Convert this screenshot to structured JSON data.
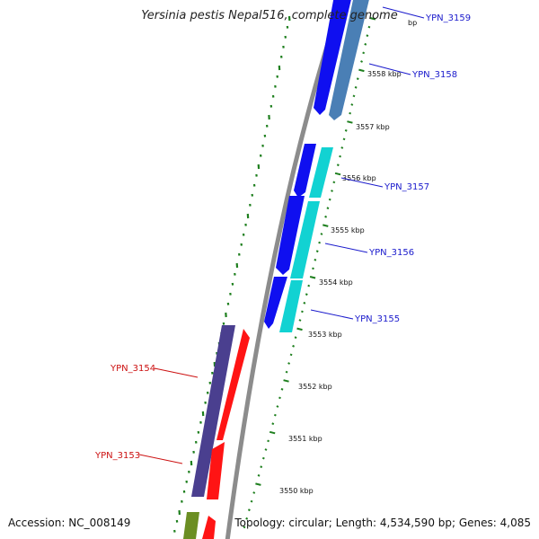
{
  "title": "Yersinia pestis Nepal516, complete genome",
  "footer": {
    "accession": "Accession: NC_008149",
    "topology": "Topology: circular; Length: 4,534,590 bp; Genes: 4,085"
  },
  "colors": {
    "backbone": "#8c8c8c",
    "tick": "#1e7f1e",
    "label_forward": "#1a1acc",
    "label_reverse": "#cc1111",
    "gene_blue": "#0f0ff0",
    "gene_steel": "#4a7fb5",
    "gene_cyan": "#12d2d2",
    "gene_navy": "#4a3f8f",
    "gene_red": "#ff1414",
    "gene_olive": "#6b8e23"
  },
  "scale_labels": [
    "3557 kbp",
    "3556 kbp",
    "3555 kbp",
    "3554 kbp",
    "3553 kbp",
    "3552 kbp",
    "3551 kbp",
    "3550 kbp"
  ],
  "scale_label_partial": "3558 kbp",
  "scale_label_top_fragment": "bp",
  "gene_labels": [
    {
      "text": "YPN_3159",
      "strand": "forward"
    },
    {
      "text": "YPN_3158",
      "strand": "forward"
    },
    {
      "text": "YPN_3157",
      "strand": "forward"
    },
    {
      "text": "YPN_3156",
      "strand": "forward"
    },
    {
      "text": "YPN_3155",
      "strand": "forward"
    },
    {
      "text": "YPN_3154",
      "strand": "reverse"
    },
    {
      "text": "YPN_3153",
      "strand": "reverse"
    }
  ]
}
